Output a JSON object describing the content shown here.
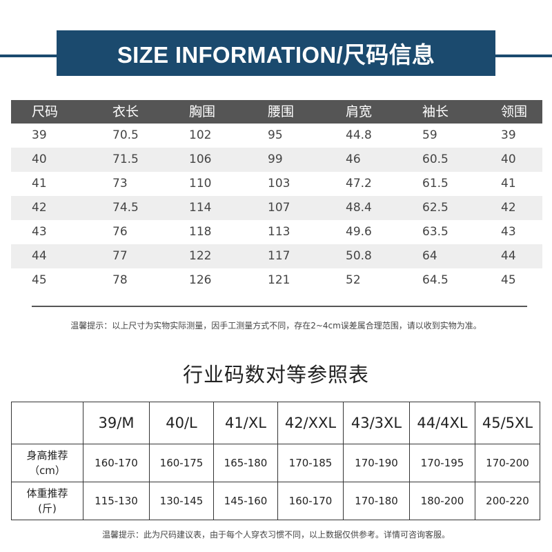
{
  "banner": {
    "title": "SIZE INFORMATION/尺码信息"
  },
  "size_table": {
    "headers": [
      "尺码",
      "衣长",
      "胸围",
      "腰围",
      "肩宽",
      "袖长",
      "领围"
    ],
    "rows": [
      [
        "39",
        "70.5",
        "102",
        "95",
        "44.8",
        "59",
        "39"
      ],
      [
        "40",
        "71.5",
        "106",
        "99",
        "46",
        "60.5",
        "40"
      ],
      [
        "41",
        "73",
        "110",
        "103",
        "47.2",
        "61.5",
        "41"
      ],
      [
        "42",
        "74.5",
        "114",
        "107",
        "48.4",
        "62.5",
        "42"
      ],
      [
        "43",
        "76",
        "118",
        "113",
        "49.6",
        "63.5",
        "43"
      ],
      [
        "44",
        "77",
        "122",
        "117",
        "50.8",
        "64",
        "44"
      ],
      [
        "45",
        "78",
        "126",
        "121",
        "52",
        "64.5",
        "45"
      ]
    ]
  },
  "note1": "温馨提示：以上尺寸为实物实际测量，因手工测量方式不同，存在2~4cm误差属合理范围，请以收到实物为准。",
  "reference": {
    "title": "行业码数对等参照表",
    "sizes": [
      "39/M",
      "40/L",
      "41/XL",
      "42/XXL",
      "43/3XL",
      "44/4XL",
      "45/5XL"
    ],
    "height_label": [
      "身高推荐",
      "（cm）"
    ],
    "height_values": [
      "160-170",
      "160-175",
      "165-180",
      "170-185",
      "170-190",
      "170-195",
      "170-200"
    ],
    "weight_label": [
      "体重推荐",
      "(斤)"
    ],
    "weight_values": [
      "115-130",
      "130-145",
      "145-160",
      "160-170",
      "170-180",
      "180-200",
      "200-220"
    ]
  },
  "note2": "温馨提示：此为尺码建议表，由于每个人穿衣习惯不同，以上数据仅供参考。详情可咨询客服。"
}
